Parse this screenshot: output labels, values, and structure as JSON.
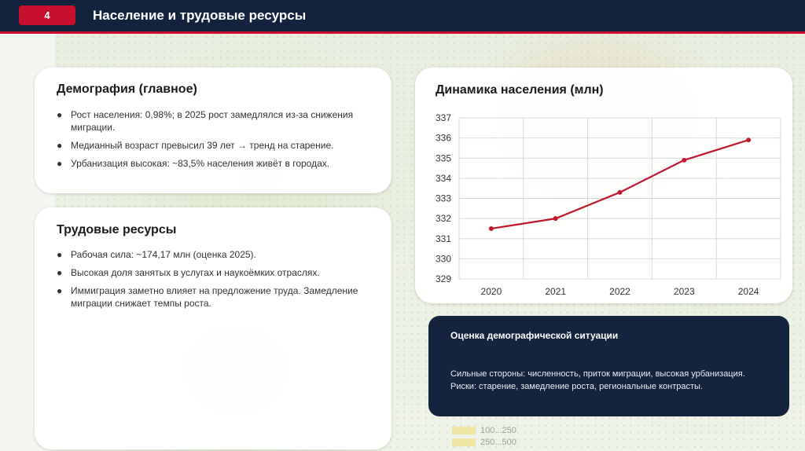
{
  "header": {
    "slide_number": "4",
    "title": "Население и трудовые ресурсы"
  },
  "demography": {
    "title": "Демография (главное)",
    "bullets": [
      "Рост населения: 0,98%; в 2025 рост замедлялся из-за снижения миграции.",
      "Медианный возраст превысил 39 лет → тренд на старение.",
      "Урбанизация высокая: ~83,5% населения живёт в городах."
    ]
  },
  "labor": {
    "title": "Трудовые ресурсы",
    "bullets": [
      "Рабочая сила: ~174,17 млн (оценка 2025).",
      "Высокая доля занятых в услугах и наукоёмких отраслях.",
      "Иммиграция заметно влияет на предложение труда. Замедление миграции снижает темпы роста."
    ]
  },
  "chart_data": {
    "type": "line",
    "title": "Динамика населения (млн)",
    "categories": [
      "2020",
      "2021",
      "2022",
      "2023",
      "2024"
    ],
    "series": [
      {
        "values": [
          331.5,
          332.0,
          333.3,
          334.9,
          335.9
        ]
      }
    ],
    "ylim": [
      329,
      337
    ],
    "yticks": [
      "329",
      "330",
      "331",
      "332",
      "333",
      "334",
      "335",
      "336",
      "337"
    ],
    "grid": true,
    "line_color": "#c0182c"
  },
  "summary": {
    "title": "Оценка демографической ситуации",
    "strengths": "Сильные стороны: численность, приток миграции, высокая урбанизация.",
    "risks": "Риски: старение, замедление роста, региональные контрасты."
  },
  "map_legend": {
    "items": [
      "100...250",
      "250...500"
    ]
  },
  "colors": {
    "navy": "#13233f",
    "accent_red": "#c8102e"
  }
}
